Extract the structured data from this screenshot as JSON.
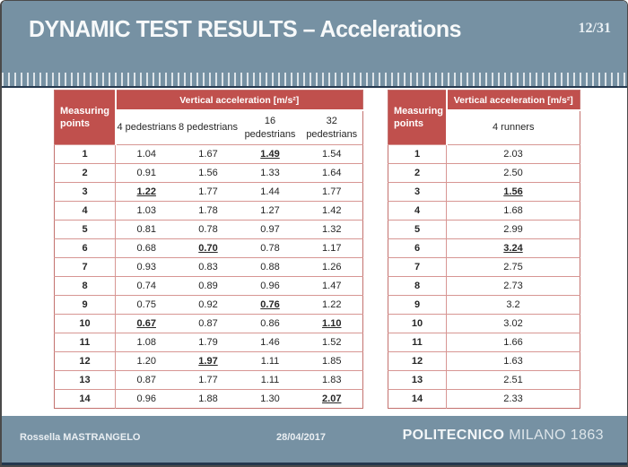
{
  "slide": {
    "title": "DYNAMIC TEST RESULTS – Accelerations",
    "page_number": "12/31"
  },
  "pedestrian_table": {
    "corner_header": "Measuring points",
    "group_header": "Vertical acceleration [m/s²]",
    "column_headers": [
      "4 pedestrians",
      "8 pedestrians",
      "16 pedestrians",
      "32 pedestrians"
    ],
    "rows": [
      {
        "point": "1",
        "values": [
          "1.04",
          "1.67",
          "1.49",
          "1.54"
        ],
        "underlined": [
          false,
          false,
          true,
          false
        ]
      },
      {
        "point": "2",
        "values": [
          "0.91",
          "1.56",
          "1.33",
          "1.64"
        ],
        "underlined": [
          false,
          false,
          false,
          false
        ]
      },
      {
        "point": "3",
        "values": [
          "1.22",
          "1.77",
          "1.44",
          "1.77"
        ],
        "underlined": [
          true,
          false,
          false,
          false
        ]
      },
      {
        "point": "4",
        "values": [
          "1.03",
          "1.78",
          "1.27",
          "1.42"
        ],
        "underlined": [
          false,
          false,
          false,
          false
        ]
      },
      {
        "point": "5",
        "values": [
          "0.81",
          "0.78",
          "0.97",
          "1.32"
        ],
        "underlined": [
          false,
          false,
          false,
          false
        ]
      },
      {
        "point": "6",
        "values": [
          "0.68",
          "0.70",
          "0.78",
          "1.17"
        ],
        "underlined": [
          false,
          true,
          false,
          false
        ]
      },
      {
        "point": "7",
        "values": [
          "0.93",
          "0.83",
          "0.88",
          "1.26"
        ],
        "underlined": [
          false,
          false,
          false,
          false
        ]
      },
      {
        "point": "8",
        "values": [
          "0.74",
          "0.89",
          "0.96",
          "1.47"
        ],
        "underlined": [
          false,
          false,
          false,
          false
        ]
      },
      {
        "point": "9",
        "values": [
          "0.75",
          "0.92",
          "0.76",
          "1.22"
        ],
        "underlined": [
          false,
          false,
          true,
          false
        ]
      },
      {
        "point": "10",
        "values": [
          "0.67",
          "0.87",
          "0.86",
          "1.10"
        ],
        "underlined": [
          true,
          false,
          false,
          true
        ]
      },
      {
        "point": "11",
        "values": [
          "1.08",
          "1.79",
          "1.46",
          "1.52"
        ],
        "underlined": [
          false,
          false,
          false,
          false
        ]
      },
      {
        "point": "12",
        "values": [
          "1.20",
          "1.97",
          "1.11",
          "1.85"
        ],
        "underlined": [
          false,
          true,
          false,
          false
        ]
      },
      {
        "point": "13",
        "values": [
          "0.87",
          "1.77",
          "1.11",
          "1.83"
        ],
        "underlined": [
          false,
          false,
          false,
          false
        ]
      },
      {
        "point": "14",
        "values": [
          "0.96",
          "1.88",
          "1.30",
          "2.07"
        ],
        "underlined": [
          false,
          false,
          false,
          true
        ]
      }
    ]
  },
  "runner_table": {
    "corner_header": "Measuring points",
    "group_header": "Vertical acceleration [m/s²]",
    "column_headers": [
      "4 runners"
    ],
    "rows": [
      {
        "point": "1",
        "values": [
          "2.03"
        ],
        "underlined": [
          false
        ]
      },
      {
        "point": "2",
        "values": [
          "2.50"
        ],
        "underlined": [
          false
        ]
      },
      {
        "point": "3",
        "values": [
          "1.56"
        ],
        "underlined": [
          true
        ]
      },
      {
        "point": "4",
        "values": [
          "1.68"
        ],
        "underlined": [
          false
        ]
      },
      {
        "point": "5",
        "values": [
          "2.99"
        ],
        "underlined": [
          false
        ]
      },
      {
        "point": "6",
        "values": [
          "3.24"
        ],
        "underlined": [
          true
        ]
      },
      {
        "point": "7",
        "values": [
          "2.75"
        ],
        "underlined": [
          false
        ]
      },
      {
        "point": "8",
        "values": [
          "2.73"
        ],
        "underlined": [
          false
        ]
      },
      {
        "point": "9",
        "values": [
          "3.2"
        ],
        "underlined": [
          false
        ]
      },
      {
        "point": "10",
        "values": [
          "3.02"
        ],
        "underlined": [
          false
        ]
      },
      {
        "point": "11",
        "values": [
          "1.66"
        ],
        "underlined": [
          false
        ]
      },
      {
        "point": "12",
        "values": [
          "1.63"
        ],
        "underlined": [
          false
        ]
      },
      {
        "point": "13",
        "values": [
          "2.51"
        ],
        "underlined": [
          false
        ]
      },
      {
        "point": "14",
        "values": [
          "2.33"
        ],
        "underlined": [
          false
        ]
      }
    ]
  },
  "footer": {
    "author": "Rossella MASTRANGELO",
    "date": "28/04/2017",
    "brand_primary": "POLITECNICO",
    "brand_secondary": "MILANO 1863"
  },
  "colors": {
    "slide_background": "#7691a3",
    "table_header": "#c0504d",
    "table_border": "#d79693",
    "accent_line": "#24384e",
    "text_dark": "#262626"
  }
}
